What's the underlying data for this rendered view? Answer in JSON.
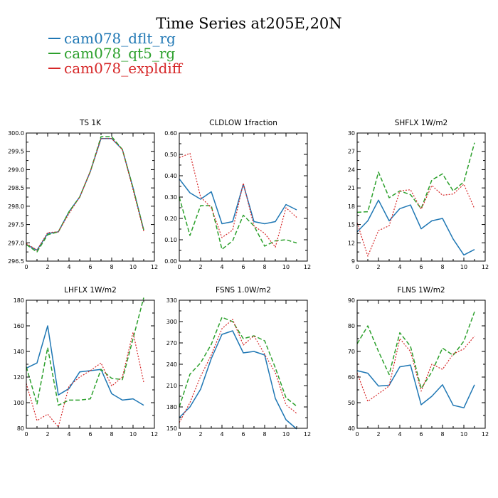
{
  "figure": {
    "title": "Time Series at205E,20N"
  },
  "legend": [
    {
      "label": "cam078_dflt_rg",
      "color": "#1f77b4"
    },
    {
      "label": "cam078_qt5_rg",
      "color": "#2ca02c"
    },
    {
      "label": "cam078_expldiff",
      "color": "#d62728"
    }
  ],
  "chart_data": [
    {
      "type": "line",
      "title": "TS   1K",
      "x": [
        0,
        1,
        2,
        3,
        4,
        5,
        6,
        7,
        8,
        9,
        10,
        11
      ],
      "xlim": [
        0,
        12
      ],
      "xticks": [
        0,
        2,
        4,
        6,
        8,
        10,
        12
      ],
      "ylim": [
        296.5,
        300.0
      ],
      "yticks": [
        296.5,
        297.0,
        297.5,
        298.0,
        298.5,
        299.0,
        299.5,
        300.0
      ],
      "ydecimals": 1,
      "series": [
        {
          "name": "cam078_dflt_rg",
          "values": [
            296.95,
            296.8,
            297.25,
            297.3,
            297.85,
            298.25,
            298.95,
            299.85,
            299.85,
            299.55,
            298.5,
            297.35
          ]
        },
        {
          "name": "cam078_qt5_rg",
          "values": [
            296.95,
            296.75,
            297.22,
            297.3,
            297.85,
            298.25,
            298.95,
            299.9,
            299.9,
            299.55,
            298.5,
            297.35
          ]
        },
        {
          "name": "cam078_expldiff",
          "values": [
            296.98,
            296.8,
            297.28,
            297.3,
            297.8,
            298.25,
            298.95,
            299.85,
            299.85,
            299.55,
            298.45,
            297.32
          ]
        }
      ]
    },
    {
      "type": "line",
      "title": "CLDLOW   1fraction",
      "x": [
        0,
        1,
        2,
        3,
        4,
        5,
        6,
        7,
        8,
        9,
        10,
        11
      ],
      "xlim": [
        0,
        12
      ],
      "xticks": [
        0,
        2,
        4,
        6,
        8,
        10,
        12
      ],
      "ylim": [
        0.0,
        0.6
      ],
      "yticks": [
        0.0,
        0.1,
        0.2,
        0.3,
        0.4,
        0.5,
        0.6
      ],
      "ydecimals": 2,
      "series": [
        {
          "name": "cam078_dflt_rg",
          "values": [
            0.385,
            0.32,
            0.29,
            0.325,
            0.175,
            0.185,
            0.36,
            0.185,
            0.175,
            0.185,
            0.265,
            0.24
          ]
        },
        {
          "name": "cam078_qt5_rg",
          "values": [
            0.3,
            0.12,
            0.26,
            0.26,
            0.055,
            0.095,
            0.215,
            0.165,
            0.07,
            0.095,
            0.1,
            0.085
          ]
        },
        {
          "name": "cam078_expldiff",
          "values": [
            0.485,
            0.505,
            0.3,
            0.25,
            0.11,
            0.145,
            0.365,
            0.165,
            0.13,
            0.065,
            0.25,
            0.205
          ]
        }
      ]
    },
    {
      "type": "line",
      "title": "SHFLX   1W/m2",
      "x": [
        0,
        1,
        2,
        3,
        4,
        5,
        6,
        7,
        8,
        9,
        10,
        11
      ],
      "xlim": [
        0,
        12
      ],
      "xticks": [
        0,
        2,
        4,
        6,
        8,
        10,
        12
      ],
      "ylim": [
        9,
        30
      ],
      "yticks": [
        9,
        12,
        15,
        18,
        21,
        24,
        27,
        30
      ],
      "ydecimals": 0,
      "series": [
        {
          "name": "cam078_dflt_rg",
          "values": [
            13.8,
            15.6,
            19.0,
            15.6,
            17.6,
            18.2,
            14.3,
            15.6,
            16.0,
            12.6,
            10.0,
            10.9
          ]
        },
        {
          "name": "cam078_qt5_rg",
          "values": [
            17.0,
            17.1,
            23.6,
            19.4,
            20.5,
            19.9,
            17.6,
            22.3,
            23.3,
            20.5,
            22.0,
            28.4
          ]
        },
        {
          "name": "cam078_expldiff",
          "values": [
            15.3,
            9.8,
            14.0,
            14.8,
            20.5,
            20.7,
            17.5,
            21.4,
            19.8,
            20.0,
            21.6,
            17.6
          ]
        }
      ]
    },
    {
      "type": "line",
      "title": "LHFLX   1W/m2",
      "x": [
        0,
        1,
        2,
        3,
        4,
        5,
        6,
        7,
        8,
        9,
        10,
        11
      ],
      "xlim": [
        0,
        12
      ],
      "xticks": [
        0,
        2,
        4,
        6,
        8,
        10,
        12
      ],
      "ylim": [
        80,
        180
      ],
      "yticks": [
        80,
        100,
        120,
        140,
        160,
        180
      ],
      "ydecimals": 0,
      "series": [
        {
          "name": "cam078_dflt_rg",
          "values": [
            127,
            131,
            160,
            106,
            111,
            124,
            125,
            126,
            107,
            102,
            103,
            98
          ]
        },
        {
          "name": "cam078_qt5_rg",
          "values": [
            128,
            99,
            143,
            98,
            102,
            102,
            103,
            126,
            119,
            118,
            150,
            182
          ]
        },
        {
          "name": "cam078_expldiff",
          "values": [
            115,
            86,
            91,
            81,
            113,
            120,
            125,
            131,
            113,
            120,
            155,
            116
          ]
        }
      ]
    },
    {
      "type": "line",
      "title": "FSNS   1.0W/m2",
      "x": [
        0,
        1,
        2,
        3,
        4,
        5,
        6,
        7,
        8,
        9,
        10,
        11
      ],
      "xlim": [
        0,
        12
      ],
      "xticks": [
        0,
        2,
        4,
        6,
        8,
        10,
        12
      ],
      "ylim": [
        150,
        330
      ],
      "yticks": [
        150,
        180,
        210,
        240,
        270,
        300,
        330
      ],
      "ydecimals": 0,
      "series": [
        {
          "name": "cam078_dflt_rg",
          "values": [
            165,
            180,
            205,
            248,
            282,
            287,
            256,
            258,
            253,
            192,
            162,
            149
          ]
        },
        {
          "name": "cam078_qt5_rg",
          "values": [
            180,
            226,
            242,
            268,
            306,
            300,
            276,
            280,
            273,
            235,
            193,
            181
          ]
        },
        {
          "name": "cam078_expldiff",
          "values": [
            158,
            186,
            223,
            253,
            290,
            303,
            267,
            280,
            254,
            228,
            183,
            171
          ]
        }
      ]
    },
    {
      "type": "line",
      "title": "FLNS   1W/m2",
      "x": [
        0,
        1,
        2,
        3,
        4,
        5,
        6,
        7,
        8,
        9,
        10,
        11
      ],
      "xlim": [
        0,
        12
      ],
      "xticks": [
        0,
        2,
        4,
        6,
        8,
        10,
        12
      ],
      "ylim": [
        40,
        90
      ],
      "yticks": [
        40,
        50,
        60,
        70,
        80,
        90
      ],
      "ydecimals": 0,
      "series": [
        {
          "name": "cam078_dflt_rg",
          "values": [
            62.5,
            61.5,
            56.5,
            56.8,
            64.0,
            64.7,
            49.2,
            52.5,
            57.0,
            49.0,
            48.0,
            57.0
          ]
        },
        {
          "name": "cam078_qt5_rg",
          "values": [
            73.0,
            80.0,
            70.0,
            61.0,
            77.3,
            72.0,
            55.5,
            62.0,
            71.3,
            68.5,
            74.0,
            85.5
          ]
        },
        {
          "name": "cam078_expldiff",
          "values": [
            61.5,
            50.5,
            53.5,
            56.5,
            75.0,
            70.0,
            54.5,
            65.0,
            63.0,
            69.0,
            71.0,
            76.0
          ]
        }
      ]
    }
  ]
}
